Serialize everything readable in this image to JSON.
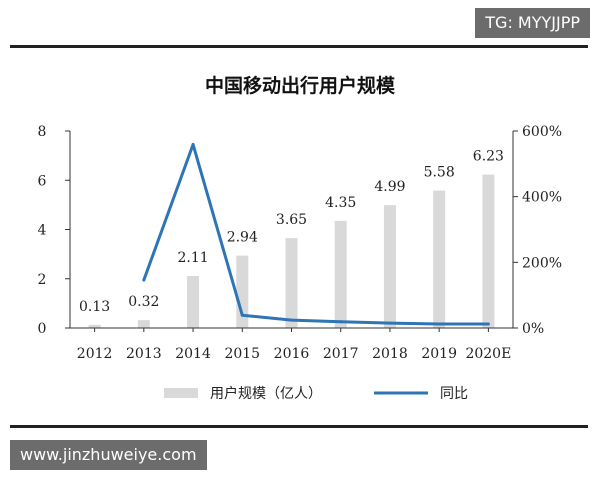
{
  "watermark": {
    "tag": "TG: MYYJJPP",
    "url": "www.jinzhuweiye.com"
  },
  "chart_data": {
    "type": "bar",
    "title": "中国移动出行用户规模",
    "categories": [
      "2012",
      "2013",
      "2014",
      "2015",
      "2016",
      "2017",
      "2018",
      "2019",
      "2020E"
    ],
    "series": [
      {
        "name": "用户规模（亿人）",
        "type": "bar",
        "axis": "left",
        "values": [
          0.13,
          0.32,
          2.11,
          2.94,
          3.65,
          4.35,
          4.99,
          5.58,
          6.23
        ],
        "labels": [
          "0.13",
          "0.32",
          "2.11",
          "2.94",
          "3.65",
          "4.35",
          "4.99",
          "5.58",
          "6.23"
        ],
        "color": "#d9d9d9"
      },
      {
        "name": "同比",
        "type": "line",
        "axis": "right",
        "values": [
          null,
          146,
          559,
          39,
          24,
          19,
          15,
          12,
          12
        ],
        "color": "#2e75b6"
      }
    ],
    "y_left": {
      "min": 0,
      "max": 8,
      "ticks": [
        0,
        2,
        4,
        6,
        8
      ]
    },
    "y_right": {
      "min": 0,
      "max": 600,
      "ticks": [
        "0%",
        "200%",
        "400%",
        "600%"
      ]
    },
    "legend_position": "bottom",
    "grid": false
  }
}
